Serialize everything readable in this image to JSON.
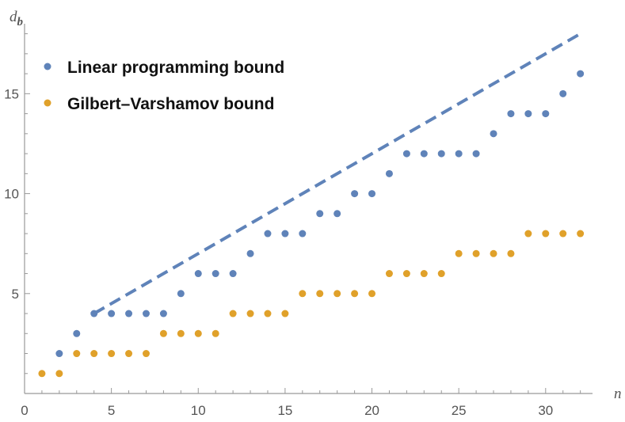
{
  "chart_data": {
    "type": "scatter",
    "xlabel": "n",
    "ylabel": "d",
    "ylabel_sub": "b",
    "xlim": [
      0,
      32.7
    ],
    "ylim": [
      0,
      18.5
    ],
    "xticks": [
      0,
      5,
      10,
      15,
      20,
      25,
      30
    ],
    "yticks": [
      5,
      10,
      15
    ],
    "xtick_labels": [
      "0",
      "5",
      "10",
      "15",
      "20",
      "25",
      "30"
    ],
    "ytick_labels": [
      "5",
      "10",
      "15"
    ],
    "grid": false,
    "legend_position": "top-left",
    "series": [
      {
        "name": "Linear programming bound",
        "color": "#5f83b9",
        "x": [
          2,
          3,
          4,
          5,
          6,
          7,
          8,
          9,
          10,
          11,
          12,
          13,
          14,
          15,
          16,
          17,
          18,
          19,
          20,
          21,
          22,
          23,
          24,
          25,
          26,
          27,
          28,
          29,
          30,
          31,
          32
        ],
        "y": [
          2,
          3,
          4,
          4,
          4,
          4,
          4,
          5,
          6,
          6,
          6,
          7,
          8,
          8,
          8,
          9,
          9,
          10,
          10,
          11,
          12,
          12,
          12,
          12,
          12,
          13,
          14,
          14,
          14,
          15,
          16
        ]
      },
      {
        "name": "Gilbert–Varshamov bound",
        "color": "#e0a12a",
        "x": [
          1,
          2,
          3,
          4,
          5,
          6,
          7,
          8,
          9,
          10,
          11,
          12,
          13,
          14,
          15,
          16,
          17,
          18,
          19,
          20,
          21,
          22,
          23,
          24,
          25,
          26,
          27,
          28,
          29,
          30,
          31,
          32
        ],
        "y": [
          1,
          1,
          2,
          2,
          2,
          2,
          2,
          3,
          3,
          3,
          3,
          4,
          4,
          4,
          4,
          5,
          5,
          5,
          5,
          5,
          6,
          6,
          6,
          6,
          7,
          7,
          7,
          7,
          8,
          8,
          8,
          8
        ]
      }
    ],
    "reference_line": {
      "style": "dashed",
      "color": "#5f83b9",
      "x": [
        4,
        32
      ],
      "y": [
        4,
        18
      ]
    }
  }
}
